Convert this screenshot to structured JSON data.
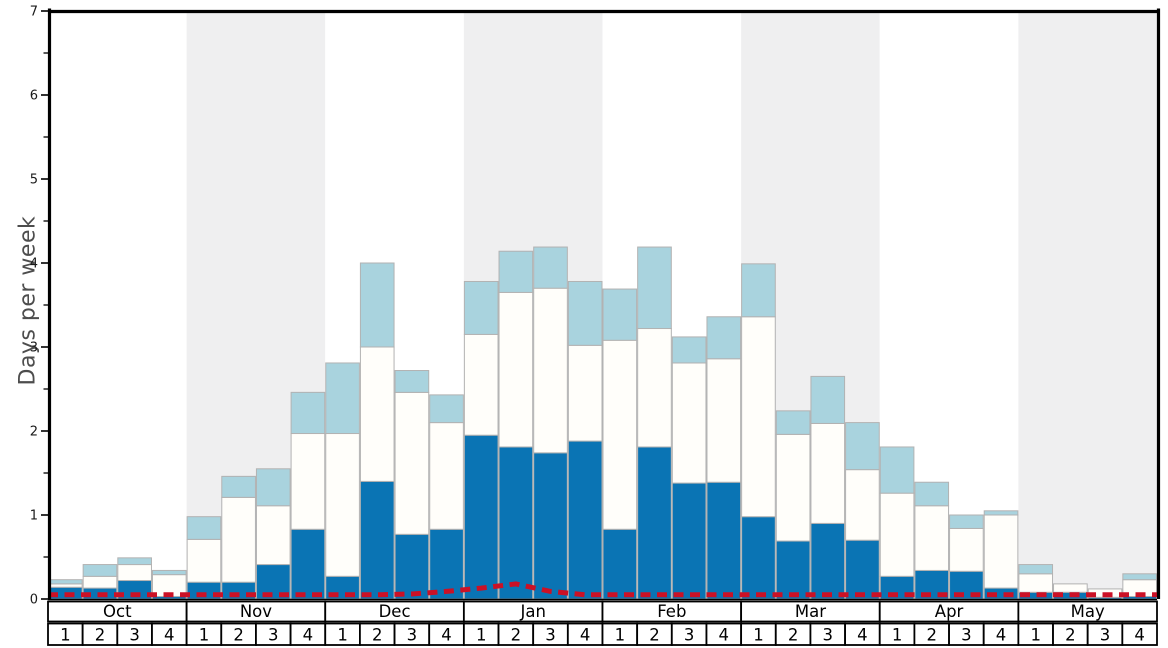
{
  "chart_data": {
    "type": "bar",
    "title": "",
    "ylabel": "Days per week",
    "ylim": [
      0,
      7
    ],
    "y_ticks": [
      0,
      1,
      2,
      3,
      4,
      5,
      6,
      7
    ],
    "grid": false,
    "legend": "none",
    "months": [
      "Oct",
      "Nov",
      "Dec",
      "Jan",
      "Feb",
      "Mar",
      "Apr",
      "May"
    ],
    "weeks_per_month": [
      "1",
      "2",
      "3",
      "4"
    ],
    "stacked": true,
    "series": [
      {
        "name": "dark-blue-days",
        "color": "#0a74b4",
        "values": [
          0.14,
          0.13,
          0.22,
          0.03,
          0.2,
          0.2,
          0.41,
          0.83,
          0.27,
          1.4,
          0.77,
          0.83,
          1.95,
          1.81,
          1.74,
          1.88,
          0.83,
          1.81,
          1.38,
          1.39,
          0.98,
          0.69,
          0.9,
          0.7,
          0.27,
          0.34,
          0.33,
          0.13,
          0.08,
          0.08,
          0.02,
          0.03
        ]
      },
      {
        "name": "white-days",
        "color": "#fffefa",
        "values": [
          0.04,
          0.14,
          0.19,
          0.26,
          0.51,
          1.01,
          0.7,
          1.14,
          1.7,
          1.6,
          1.69,
          1.27,
          1.2,
          1.84,
          1.96,
          1.14,
          2.25,
          1.41,
          1.43,
          1.47,
          2.38,
          1.27,
          1.19,
          0.84,
          0.99,
          0.77,
          0.51,
          0.87,
          0.22,
          0.1,
          0.1,
          0.2
        ]
      },
      {
        "name": "light-blue-days",
        "color": "#a9d3de",
        "values": [
          0.05,
          0.14,
          0.08,
          0.05,
          0.27,
          0.25,
          0.44,
          0.49,
          0.84,
          1.0,
          0.26,
          0.33,
          0.63,
          0.49,
          0.49,
          0.76,
          0.61,
          0.97,
          0.31,
          0.5,
          0.63,
          0.28,
          0.56,
          0.56,
          0.55,
          0.28,
          0.16,
          0.05,
          0.11,
          0.0,
          0.0,
          0.07
        ]
      }
    ],
    "line_series": {
      "name": "red-dashed-line",
      "color": "#cb1126",
      "style": "dashed",
      "values": [
        0.05,
        0.05,
        0.05,
        0.05,
        0.05,
        0.05,
        0.05,
        0.05,
        0.05,
        0.05,
        0.06,
        0.09,
        0.13,
        0.18,
        0.09,
        0.05,
        0.05,
        0.05,
        0.05,
        0.05,
        0.05,
        0.05,
        0.05,
        0.05,
        0.05,
        0.05,
        0.05,
        0.05,
        0.05,
        0.05,
        0.05,
        0.05
      ]
    },
    "band_colors": [
      "#ffffff",
      "#efeff0"
    ],
    "bar_border_color": "#b2b2b2",
    "axis_color": "#000000",
    "tick_label_color": "#1a1a1a"
  }
}
